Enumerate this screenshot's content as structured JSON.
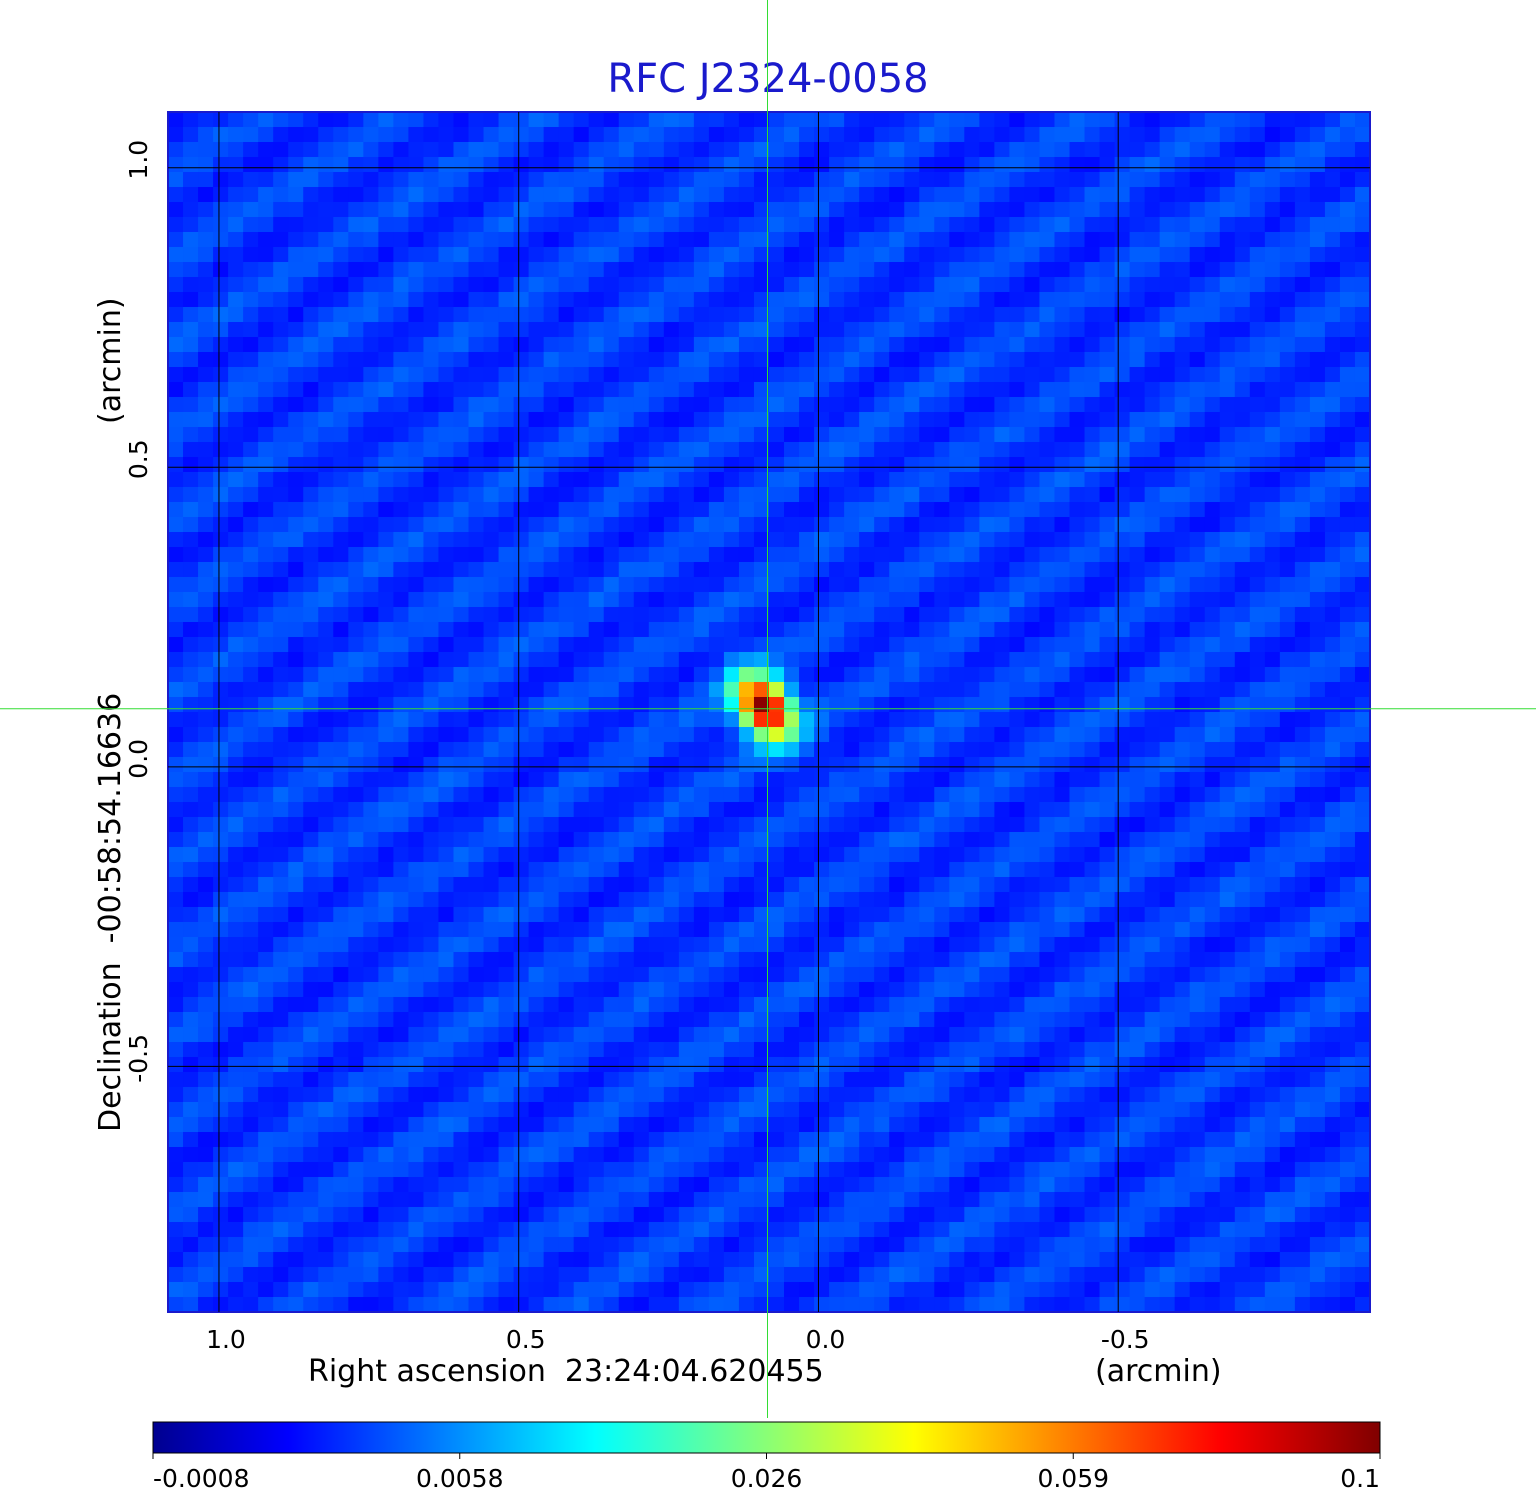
{
  "chart_data": {
    "type": "heatmap",
    "title": "RFC J2324-0058",
    "xlabel": "Right ascension  23:24:04.620455",
    "xunit": "(arcmin)",
    "ylabel": "Declination  -00:58:54.16636",
    "yunit": "(arcmin)",
    "x_ticks": [
      "1.0",
      "0.5",
      "0.0",
      "-0.5"
    ],
    "y_ticks": [
      "1.0",
      "0.5",
      "0.0",
      "-0.5"
    ],
    "x_tick_values": [
      1.0,
      0.5,
      0.0,
      -0.5
    ],
    "y_tick_values": [
      1.0,
      0.5,
      0.0,
      -0.5
    ],
    "xlim": [
      1.085,
      -0.92
    ],
    "ylim": [
      -0.91,
      1.093
    ],
    "x_direction": "reversed",
    "grid": true,
    "crosshair": {
      "x": 0.085,
      "y": 0.097,
      "color": "#33dd33"
    },
    "source_peak": {
      "x": 0.09,
      "y": 0.1,
      "value": 0.1
    },
    "colormap": "jet",
    "colorbar": {
      "ticks": [
        "-0.0008",
        "0.0058",
        "0.026",
        "0.059",
        "0.1"
      ],
      "position": "bottom"
    }
  }
}
